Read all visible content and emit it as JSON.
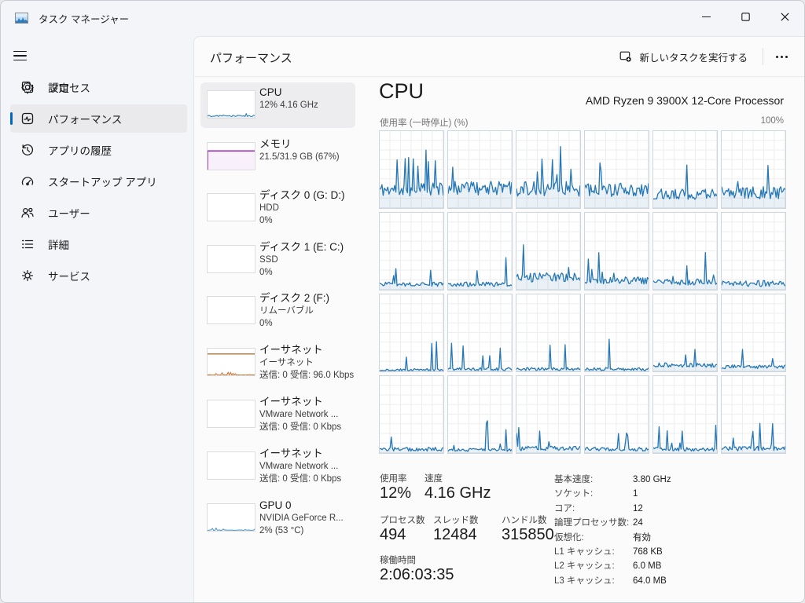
{
  "colors": {
    "accent": "#0067c0",
    "cpu_line": "#2577b5",
    "cpu_fill": "rgba(37,119,181,0.10)",
    "mem_line": "#8c12b5",
    "mem_fill": "rgba(140,18,181,0.06)",
    "eth_line": "#a9763c",
    "eth_spike": "#c96a24",
    "gpu_line": "#4a90c7"
  },
  "window": {
    "title": "タスク マネージャー",
    "controls": {
      "minimize": "minimize",
      "maximize": "maximize",
      "close": "close"
    }
  },
  "sidebar": {
    "items": [
      {
        "label": "プロセス"
      },
      {
        "label": "パフォーマンス"
      },
      {
        "label": "アプリの履歴"
      },
      {
        "label": "スタートアップ アプリ"
      },
      {
        "label": "ユーザー"
      },
      {
        "label": "詳細"
      },
      {
        "label": "サービス"
      }
    ],
    "settings_label": "設定"
  },
  "header": {
    "title": "パフォーマンス",
    "new_task_label": "新しいタスクを実行する"
  },
  "perf_list": {
    "items": [
      {
        "title": "CPU",
        "line2": "12%  4.16 GHz",
        "line3": "",
        "thumb": "cpu"
      },
      {
        "title": "メモリ",
        "line2": "21.5/31.9 GB (67%)",
        "line3": "",
        "thumb": "mem"
      },
      {
        "title": "ディスク 0 (G: D:)",
        "line2": "HDD",
        "line3": "0%",
        "thumb": "empty"
      },
      {
        "title": "ディスク 1 (E: C:)",
        "line2": "SSD",
        "line3": "0%",
        "thumb": "empty"
      },
      {
        "title": "ディスク 2 (F:)",
        "line2": "リムーバブル",
        "line3": "0%",
        "thumb": "empty"
      },
      {
        "title": "イーサネット",
        "line2": "イーサネット",
        "line3": "送信: 0 受信: 96.0 Kbps",
        "thumb": "eth"
      },
      {
        "title": "イーサネット",
        "line2": "VMware Network ...",
        "line3": "送信: 0 受信: 0 Kbps",
        "thumb": "empty"
      },
      {
        "title": "イーサネット",
        "line2": "VMware Network ...",
        "line3": "送信: 0 受信: 0 Kbps",
        "thumb": "empty"
      },
      {
        "title": "GPU 0",
        "line2": "NVIDIA GeForce R...",
        "line3": "2%  (53 °C)",
        "thumb": "gpu"
      }
    ]
  },
  "cpu": {
    "title": "CPU",
    "subtitle": "AMD Ryzen 9 3900X 12-Core Processor",
    "chart_label": "使用率 (一時停止) (%)",
    "chart_max": "100%",
    "stats_left": {
      "usage_label": "使用率",
      "usage_value": "12%",
      "speed_label": "速度",
      "speed_value": "4.16 GHz",
      "processes_label": "プロセス数",
      "processes_value": "494",
      "threads_label": "スレッド数",
      "threads_value": "12484",
      "handles_label": "ハンドル数",
      "handles_value": "315850",
      "uptime_label": "稼働時間",
      "uptime_value": "2:06:03:35"
    },
    "stats_right": [
      {
        "label": "基本速度:",
        "value": "3.80 GHz"
      },
      {
        "label": "ソケット:",
        "value": "1"
      },
      {
        "label": "コア:",
        "value": "12"
      },
      {
        "label": "論理プロセッサ数:",
        "value": "24"
      },
      {
        "label": "仮想化:",
        "value": "有効"
      },
      {
        "label": "L1 キャッシュ:",
        "value": "768 KB"
      },
      {
        "label": "L2 キャッシュ:",
        "value": "6.0 MB"
      },
      {
        "label": "L3 キャッシュ:",
        "value": "64.0 MB"
      }
    ]
  },
  "chart_data": {
    "type": "line",
    "title": "使用率 (一時停止) (%)",
    "ylim": [
      0,
      100
    ],
    "grid": "on",
    "layout": "6x4 small multiples, one per logical processor (24 logical processors)",
    "note": "approximate usage profiles per logical processor; base=avg %, spike_max=peak spike %",
    "cells": [
      {
        "seed": 11,
        "base": 24,
        "noise": 9,
        "spike_prob": 0.12,
        "spike_max": 58
      },
      {
        "seed": 23,
        "base": 26,
        "noise": 9,
        "spike_prob": 0.06,
        "spike_max": 30
      },
      {
        "seed": 37,
        "base": 25,
        "noise": 10,
        "spike_prob": 0.16,
        "spike_max": 62
      },
      {
        "seed": 41,
        "base": 24,
        "noise": 9,
        "spike_prob": 0.1,
        "spike_max": 45
      },
      {
        "seed": 53,
        "base": 18,
        "noise": 7,
        "spike_prob": 0.07,
        "spike_max": 60
      },
      {
        "seed": 67,
        "base": 20,
        "noise": 8,
        "spike_prob": 0.06,
        "spike_max": 35
      },
      {
        "seed": 71,
        "base": 7,
        "noise": 3,
        "spike_prob": 0.06,
        "spike_max": 48
      },
      {
        "seed": 83,
        "base": 7,
        "noise": 3,
        "spike_prob": 0.07,
        "spike_max": 42
      },
      {
        "seed": 97,
        "base": 16,
        "noise": 6,
        "spike_prob": 0.08,
        "spike_max": 40
      },
      {
        "seed": 103,
        "base": 12,
        "noise": 5,
        "spike_prob": 0.08,
        "spike_max": 38
      },
      {
        "seed": 113,
        "base": 10,
        "noise": 4,
        "spike_prob": 0.08,
        "spike_max": 40
      },
      {
        "seed": 127,
        "base": 8,
        "noise": 4,
        "spike_prob": 0.06,
        "spike_max": 36
      },
      {
        "seed": 131,
        "base": 2,
        "noise": 1.5,
        "spike_prob": 0.035,
        "spike_max": 40
      },
      {
        "seed": 139,
        "base": 3,
        "noise": 2,
        "spike_prob": 0.05,
        "spike_max": 40
      },
      {
        "seed": 149,
        "base": 3,
        "noise": 2,
        "spike_prob": 0.04,
        "spike_max": 35
      },
      {
        "seed": 151,
        "base": 3,
        "noise": 2,
        "spike_prob": 0.05,
        "spike_max": 42
      },
      {
        "seed": 163,
        "base": 8,
        "noise": 3,
        "spike_prob": 0.05,
        "spike_max": 30
      },
      {
        "seed": 173,
        "base": 6,
        "noise": 2.5,
        "spike_prob": 0.05,
        "spike_max": 28
      },
      {
        "seed": 179,
        "base": 5,
        "noise": 2.5,
        "spike_prob": 0.05,
        "spike_max": 40
      },
      {
        "seed": 191,
        "base": 4,
        "noise": 2,
        "spike_prob": 0.06,
        "spike_max": 38
      },
      {
        "seed": 193,
        "base": 6,
        "noise": 3,
        "spike_prob": 0.07,
        "spike_max": 30
      },
      {
        "seed": 197,
        "base": 5,
        "noise": 2.5,
        "spike_prob": 0.07,
        "spike_max": 36
      },
      {
        "seed": 199,
        "base": 5,
        "noise": 2.5,
        "spike_prob": 0.06,
        "spike_max": 34
      },
      {
        "seed": 211,
        "base": 6,
        "noise": 3,
        "spike_prob": 0.08,
        "spike_max": 36
      }
    ],
    "thumbs": {
      "cpu": {
        "seed": 301,
        "base": 7,
        "noise": 3,
        "spike_prob": 0.12,
        "spike_max": 16
      },
      "gpu": {
        "seed": 307,
        "base": 2,
        "noise": 1.2,
        "spike_prob": 0.18,
        "spike_max": 9
      },
      "eth_spikes": {
        "seed": 311,
        "base": 1.5,
        "noise": 1.2,
        "spike_prob": 0.22,
        "spike_max": 9
      },
      "mem_level_pct": 70,
      "eth_level_pct": 80
    }
  }
}
